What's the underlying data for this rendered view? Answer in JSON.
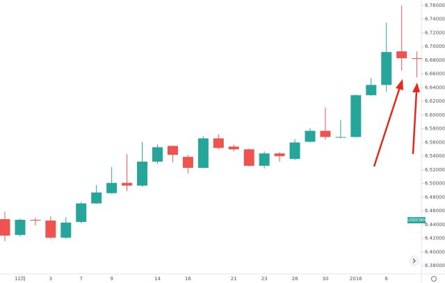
{
  "chart_data": {
    "type": "candlestick",
    "categories": [
      null,
      "12月",
      null,
      "3",
      null,
      "7",
      null,
      "9",
      null,
      null,
      "14",
      null,
      "16",
      null,
      null,
      "21",
      null,
      "23",
      null,
      "28",
      null,
      "30",
      null,
      "2016",
      null,
      "6",
      null,
      null
    ],
    "open": [
      6.448,
      6.425,
      6.447,
      6.446,
      6.421,
      6.444,
      6.471,
      6.486,
      6.501,
      6.497,
      6.532,
      6.555,
      6.539,
      6.523,
      6.566,
      6.554,
      6.55,
      6.526,
      6.544,
      6.536,
      6.561,
      6.577,
      6.567,
      6.568,
      6.629,
      6.644,
      6.693,
      6.683
    ],
    "high": [
      6.459,
      6.449,
      6.45,
      6.452,
      6.451,
      6.473,
      6.498,
      6.524,
      6.543,
      6.561,
      6.557,
      6.555,
      6.542,
      6.569,
      6.572,
      6.557,
      6.551,
      6.547,
      6.546,
      6.565,
      6.581,
      6.611,
      6.593,
      6.63,
      6.654,
      6.735,
      6.76,
      6.693
    ],
    "low": [
      6.416,
      6.423,
      6.439,
      6.419,
      6.419,
      6.442,
      6.47,
      6.485,
      6.489,
      6.495,
      6.529,
      6.531,
      6.515,
      6.522,
      6.55,
      6.547,
      6.525,
      6.522,
      6.532,
      6.534,
      6.56,
      6.564,
      6.566,
      6.567,
      6.628,
      6.634,
      6.665,
      6.655
    ],
    "close": [
      6.424,
      6.447,
      6.446,
      6.421,
      6.443,
      6.471,
      6.487,
      6.501,
      6.497,
      6.532,
      6.553,
      6.542,
      6.523,
      6.566,
      6.552,
      6.55,
      6.526,
      6.544,
      6.54,
      6.56,
      6.577,
      6.568,
      6.568,
      6.629,
      6.644,
      6.692,
      6.683,
      6.682
    ],
    "up_color": "#26a69a",
    "down_color": "#ef5350",
    "ylim": [
      6.368,
      6.768
    ],
    "yticks": [
      {
        "value": 6.38,
        "label": "6.38000"
      },
      {
        "value": 6.4,
        "label": "6.40000"
      },
      {
        "value": 6.42,
        "label": "6.42000"
      },
      {
        "value": 6.44,
        "label": "6.44000"
      },
      {
        "value": 6.46,
        "label": "6.46000"
      },
      {
        "value": 6.48,
        "label": "6.48000"
      },
      {
        "value": 6.5,
        "label": "6.50000"
      },
      {
        "value": 6.52,
        "label": "6.52000"
      },
      {
        "value": 6.54,
        "label": "6.54000"
      },
      {
        "value": 6.56,
        "label": "6.56000"
      },
      {
        "value": 6.58,
        "label": "6.58000"
      },
      {
        "value": 6.6,
        "label": "6.60000"
      },
      {
        "value": 6.62,
        "label": "6.62000"
      },
      {
        "value": 6.64,
        "label": "6.64000"
      },
      {
        "value": 6.66,
        "label": "6.66000"
      },
      {
        "value": 6.68,
        "label": "6.68000"
      },
      {
        "value": 6.7,
        "label": "6.70000"
      },
      {
        "value": 6.72,
        "label": "6.72000"
      },
      {
        "value": 6.74,
        "label": "6.74000"
      },
      {
        "value": 6.76,
        "label": "6.76000"
      }
    ],
    "symbol": "USDCNH"
  }
}
